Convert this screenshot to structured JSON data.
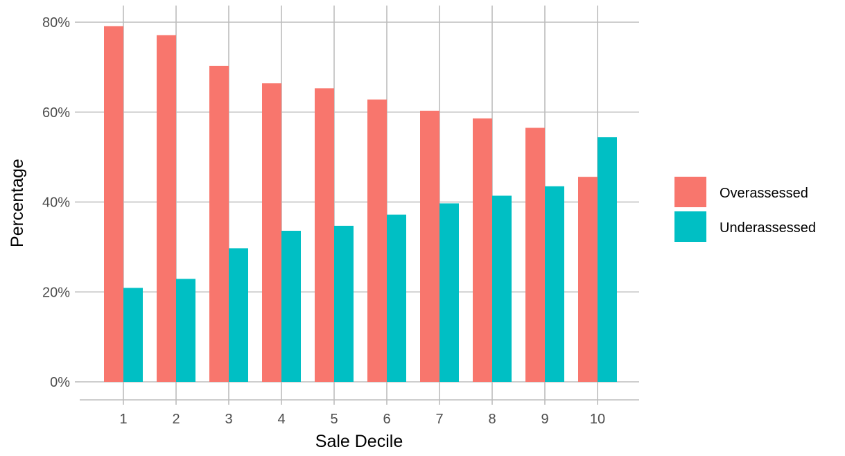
{
  "chart_data": {
    "type": "bar",
    "title": "",
    "xlabel": "Sale Decile",
    "ylabel": "Percentage",
    "categories": [
      "1",
      "2",
      "3",
      "4",
      "5",
      "6",
      "7",
      "8",
      "9",
      "10"
    ],
    "series": [
      {
        "name": "Overassessed",
        "color": "#f8766d",
        "values": [
          79.1,
          77.1,
          70.3,
          66.4,
          65.3,
          62.8,
          60.3,
          58.6,
          56.5,
          45.6
        ]
      },
      {
        "name": "Underassessed",
        "color": "#00bfc4",
        "values": [
          20.9,
          22.9,
          29.7,
          33.6,
          34.7,
          37.2,
          39.7,
          41.4,
          43.5,
          54.4
        ]
      }
    ],
    "ylim": [
      0,
      80
    ],
    "yticks": [
      0,
      20,
      40,
      60,
      80
    ],
    "ytick_labels": [
      "0%",
      "20%",
      "40%",
      "60%",
      "80%"
    ],
    "grid": true,
    "legend_position": "right"
  }
}
